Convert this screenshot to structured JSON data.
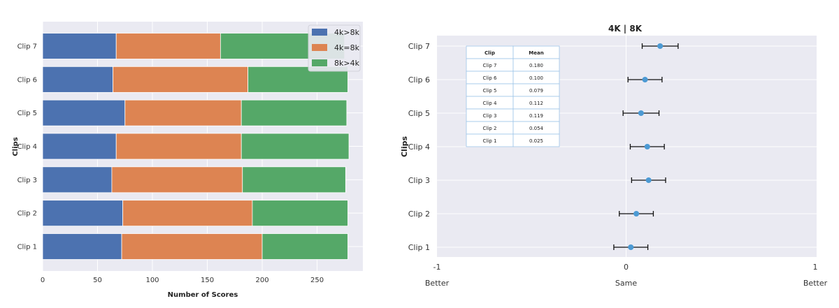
{
  "chart_data": [
    {
      "type": "bar",
      "orientation": "horizontal",
      "stacked": true,
      "categories": [
        "Clip 1",
        "Clip 2",
        "Clip 3",
        "Clip 4",
        "Clip 5",
        "Clip 6",
        "Clip 7"
      ],
      "series": [
        {
          "name": "4k>8k",
          "color": "#4c72b0",
          "values": [
            72,
            73,
            63,
            67,
            75,
            64,
            67
          ]
        },
        {
          "name": "4k=8k",
          "color": "#dd8452",
          "values": [
            128,
            118,
            119,
            114,
            106,
            123,
            95
          ]
        },
        {
          "name": "8k>4k",
          "color": "#55a868",
          "values": [
            78,
            87,
            94,
            98,
            96,
            91,
            113
          ]
        }
      ],
      "xlabel": "Number of Scores",
      "ylabel": "Clips",
      "xticks": [
        "0",
        "50",
        "100",
        "150",
        "200",
        "250"
      ],
      "xlim": [
        0,
        290
      ],
      "grid": true,
      "legend": "top-right"
    },
    {
      "type": "scatter",
      "title": "4K | 8K",
      "categories": [
        "Clip 1",
        "Clip 2",
        "Clip 3",
        "Clip 4",
        "Clip 5",
        "Clip 6",
        "Clip 7"
      ],
      "values": [
        0.025,
        0.054,
        0.119,
        0.112,
        0.079,
        0.1,
        0.18
      ],
      "error": [
        0.09,
        0.09,
        0.09,
        0.09,
        0.095,
        0.09,
        0.095
      ],
      "color": "#4c9ad4",
      "ylabel": "Clips",
      "xlim": [
        -1,
        1
      ],
      "xticks": [
        "-1",
        "0",
        "1"
      ],
      "x_sublabels": [
        "Better",
        "Same",
        "Better"
      ],
      "grid": true,
      "table": {
        "headers": [
          "Clip",
          "Mean"
        ],
        "rows": [
          [
            "Clip 7",
            "0.180"
          ],
          [
            "Clip 6",
            "0.100"
          ],
          [
            "Clip 5",
            "0.079"
          ],
          [
            "Clip 4",
            "0.112"
          ],
          [
            "Clip 3",
            "0.119"
          ],
          [
            "Clip 2",
            "0.054"
          ],
          [
            "Clip 1",
            "0.025"
          ]
        ]
      }
    }
  ]
}
